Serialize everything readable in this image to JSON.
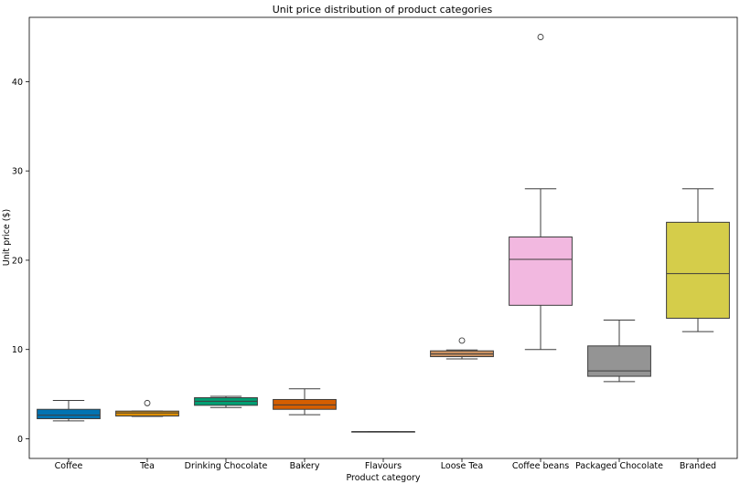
{
  "chart_data": {
    "type": "box",
    "title": "Unit price distribution of product categories",
    "xlabel": "Product category",
    "ylabel": "Unit price ($)",
    "ylim": [
      -2.2,
      47.2
    ],
    "yticks": [
      0,
      10,
      20,
      30,
      40
    ],
    "grid": false,
    "legend": "none",
    "series": [
      {
        "category": "Coffee",
        "color": "#0173b2",
        "whisker_low": 2.0,
        "q1": 2.25,
        "median": 2.65,
        "q3": 3.3,
        "whisker_high": 4.3,
        "outliers": []
      },
      {
        "category": "Tea",
        "color": "#de8f05",
        "whisker_low": 2.5,
        "q1": 2.55,
        "median": 2.9,
        "q3": 3.1,
        "whisker_high": 3.1,
        "outliers": [
          4.0
        ]
      },
      {
        "category": "Drinking Chocolate",
        "color": "#029e73",
        "whisker_low": 3.5,
        "q1": 3.75,
        "median": 4.2,
        "q3": 4.6,
        "whisker_high": 4.75,
        "outliers": []
      },
      {
        "category": "Bakery",
        "color": "#d55e00",
        "whisker_low": 2.7,
        "q1": 3.3,
        "median": 3.8,
        "q3": 4.4,
        "whisker_high": 5.6,
        "outliers": []
      },
      {
        "category": "Flavours",
        "color": "#cc78bc",
        "whisker_low": 0.8,
        "q1": 0.8,
        "median": 0.8,
        "q3": 0.8,
        "whisker_high": 0.8,
        "outliers": []
      },
      {
        "category": "Loose Tea",
        "color": "#ca9161",
        "whisker_low": 8.95,
        "q1": 9.2,
        "median": 9.5,
        "q3": 9.85,
        "whisker_high": 9.95,
        "outliers": [
          11.0
        ]
      },
      {
        "category": "Coffee beans",
        "color": "#f2b8e0",
        "whisker_low": 10.0,
        "q1": 14.95,
        "median": 20.1,
        "q3": 22.6,
        "whisker_high": 28.0,
        "outliers": [
          45.0
        ]
      },
      {
        "category": "Packaged Chocolate",
        "color": "#949494",
        "whisker_low": 6.4,
        "q1": 7.0,
        "median": 7.6,
        "q3": 10.4,
        "whisker_high": 13.3,
        "outliers": []
      },
      {
        "category": "Branded",
        "color": "#d5cd4a",
        "whisker_low": 12.0,
        "q1": 13.5,
        "median": 18.5,
        "q3": 24.25,
        "whisker_high": 28.0,
        "outliers": []
      }
    ]
  }
}
